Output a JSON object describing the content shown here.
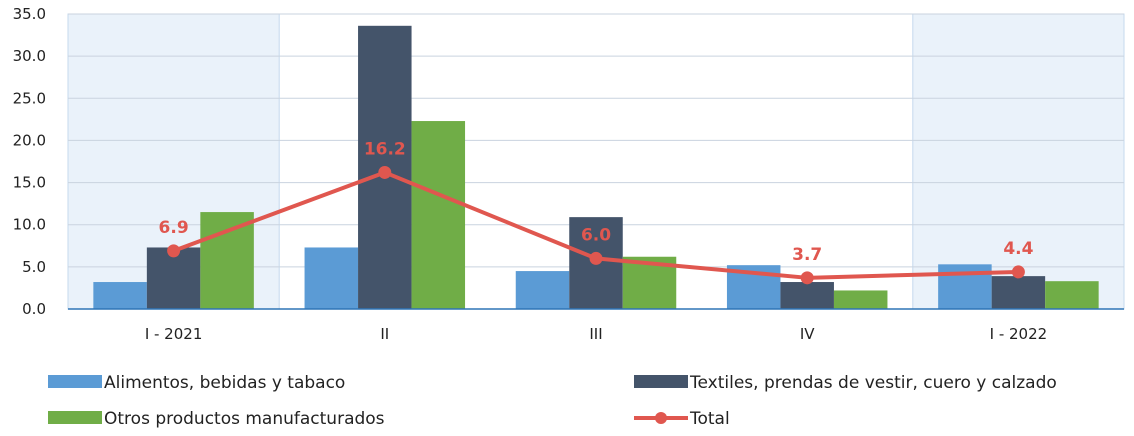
{
  "chart_data": {
    "type": "bar",
    "categories": [
      "I - 2021",
      "II",
      "III",
      "IV",
      "I - 2022"
    ],
    "series": [
      {
        "name": "Alimentos, bebidas y tabaco",
        "type": "bar",
        "color": "#5b9bd5",
        "values": [
          3.2,
          7.3,
          4.5,
          5.2,
          5.3
        ]
      },
      {
        "name": "Textiles, prendas de vestir, cuero y calzado",
        "type": "bar",
        "color": "#44546a",
        "values": [
          7.3,
          33.6,
          10.9,
          3.2,
          3.9
        ]
      },
      {
        "name": "Otros productos manufacturados",
        "type": "bar",
        "color": "#70ad47",
        "values": [
          11.5,
          22.3,
          6.2,
          2.2,
          3.3
        ]
      },
      {
        "name": "Total",
        "type": "line",
        "color": "#e0574f",
        "values": [
          6.9,
          16.2,
          6.0,
          3.7,
          4.4
        ]
      }
    ],
    "data_labels": [
      "6.9",
      "16.2",
      "6.0",
      "3.7",
      "4.4"
    ],
    "y_ticks": [
      "0.0",
      "5.0",
      "10.0",
      "15.0",
      "20.0",
      "25.0",
      "30.0",
      "35.0"
    ],
    "ylim": [
      0,
      35
    ],
    "grid": true,
    "highlighted_categories": [
      "I - 2021",
      "I - 2022"
    ],
    "highlight_color": "#eaf2fa",
    "legend_position": "bottom",
    "title": "",
    "xlabel": "",
    "ylabel": ""
  }
}
